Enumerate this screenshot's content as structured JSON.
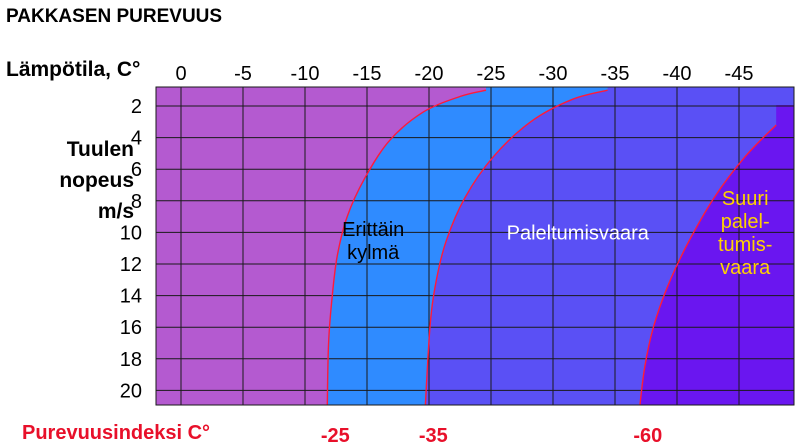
{
  "title": "PAKKASEN PUREVUUS",
  "temp_label": "Lämpötila, C°",
  "wind_label": [
    "Tuulen",
    "nopeus",
    "m/s"
  ],
  "index_label": "Purevuusindeksi C°",
  "chart_data": {
    "type": "area",
    "x_ticks": [
      "0",
      "-5",
      "-10",
      "-15",
      "-20",
      "-25",
      "-30",
      "-35",
      "-40",
      "-45"
    ],
    "y_ticks": [
      "2",
      "4",
      "6",
      "8",
      "10",
      "12",
      "14",
      "16",
      "18",
      "20"
    ],
    "xlim": [
      0,
      -48
    ],
    "ylim": [
      1,
      21
    ],
    "grid": true,
    "zones": [
      {
        "label": [],
        "color": "#b45ad0"
      },
      {
        "label": [
          "Erittäin",
          "kylmä"
        ],
        "label_x": -15.5,
        "label_y": 10.5,
        "text_color": "#000000",
        "color": "#2f8bff"
      },
      {
        "label": [
          "Paleltumisvaara"
        ],
        "label_x": -32,
        "label_y": 10,
        "text_color": "#ffffff",
        "color": "#5a50f5"
      },
      {
        "label": [
          "Suuri",
          "palel-",
          "tumis-",
          "vaara"
        ],
        "label_x": -45.5,
        "label_y": 10,
        "text_color": "#ffd200",
        "color": "#6a16f0"
      }
    ],
    "boundaries": [
      {
        "index": "-25",
        "points": [
          [
            -24.6,
            1.0
          ],
          [
            -22.5,
            1.4
          ],
          [
            -19.5,
            2.4
          ],
          [
            -16.8,
            4.2
          ],
          [
            -14.8,
            6.6
          ],
          [
            -13.4,
            9.0
          ],
          [
            -12.6,
            11.5
          ],
          [
            -12.2,
            14.0
          ],
          [
            -11.9,
            17.0
          ],
          [
            -11.8,
            21.0
          ]
        ]
      },
      {
        "index": "-35",
        "points": [
          [
            -34.4,
            1.0
          ],
          [
            -31.5,
            1.6
          ],
          [
            -28.2,
            3.0
          ],
          [
            -25.2,
            5.2
          ],
          [
            -22.9,
            7.8
          ],
          [
            -21.4,
            10.5
          ],
          [
            -20.6,
            13.0
          ],
          [
            -20.1,
            15.8
          ],
          [
            -19.7,
            21.0
          ]
        ]
      },
      {
        "index": "-60",
        "points": [
          [
            -48.0,
            3.2
          ],
          [
            -45.5,
            5.2
          ],
          [
            -43.0,
            7.8
          ],
          [
            -40.8,
            10.8
          ],
          [
            -39.2,
            13.5
          ],
          [
            -38.1,
            16.0
          ],
          [
            -37.4,
            18.5
          ],
          [
            -37.0,
            21.0
          ]
        ]
      }
    ]
  }
}
